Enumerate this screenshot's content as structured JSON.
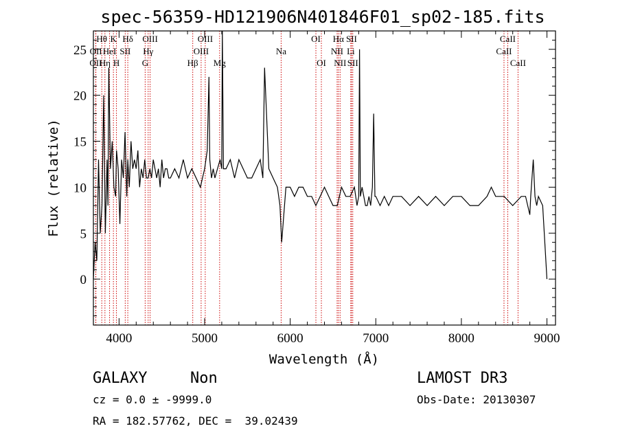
{
  "chart_data": {
    "type": "line",
    "title": "spec-56359-HD121906N401846F01_sp02-185.fits",
    "xlabel": "Wavelength (Å)",
    "ylabel": "Flux (relative)",
    "xlim": [
      3700,
      9100
    ],
    "ylim": [
      -5,
      27
    ],
    "xticks": [
      4000,
      5000,
      6000,
      7000,
      8000,
      9000
    ],
    "yticks": [
      0,
      5,
      10,
      15,
      20,
      25
    ],
    "grid": false,
    "line_color": "#000000",
    "marker_color": "#cc0000",
    "series": [
      {
        "x": [
          3700,
          3720,
          3740,
          3760,
          3780,
          3800,
          3820,
          3840,
          3860,
          3870,
          3880,
          3900,
          3920,
          3940,
          3960,
          3970,
          3990,
          4010,
          4030,
          4050,
          4070,
          4090,
          4102,
          4120,
          4140,
          4160,
          4180,
          4200,
          4220,
          4240,
          4260,
          4280,
          4300,
          4320,
          4340,
          4360,
          4380,
          4400,
          4420,
          4440,
          4460,
          4480,
          4500,
          4520,
          4540,
          4560,
          4580,
          4600,
          4650,
          4700,
          4750,
          4800,
          4850,
          4900,
          4950,
          5000,
          5030,
          5050,
          5060,
          5080,
          5100,
          5120,
          5150,
          5180,
          5200,
          5207,
          5220,
          5250,
          5300,
          5350,
          5400,
          5450,
          5500,
          5550,
          5600,
          5650,
          5680,
          5700,
          5750,
          5800,
          5850,
          5880,
          5900,
          5950,
          6000,
          6050,
          6100,
          6150,
          6200,
          6250,
          6300,
          6350,
          6400,
          6450,
          6500,
          6550,
          6600,
          6650,
          6700,
          6750,
          6780,
          6800,
          6810,
          6820,
          6840,
          6860,
          6880,
          6900,
          6920,
          6940,
          6960,
          6975,
          6990,
          7000,
          7050,
          7100,
          7150,
          7200,
          7300,
          7400,
          7500,
          7600,
          7700,
          7800,
          7900,
          8000,
          8100,
          8200,
          8300,
          8350,
          8400,
          8500,
          8600,
          8700,
          8750,
          8800,
          8810,
          8840,
          8860,
          8880,
          8900,
          8950,
          9000
        ],
        "values": [
          0,
          4,
          2,
          13,
          5,
          8,
          20,
          5,
          13,
          8,
          23,
          12,
          15,
          10,
          9,
          14,
          12,
          6,
          13,
          11,
          16,
          9,
          13,
          10,
          15,
          12,
          13,
          12,
          14,
          10,
          12,
          11,
          13,
          11,
          11,
          12,
          11,
          13,
          12,
          11,
          12,
          10,
          13,
          11,
          12,
          12,
          11,
          11,
          12,
          11,
          13,
          11,
          12,
          11,
          10,
          12,
          14,
          22,
          13,
          11,
          12,
          11,
          12,
          13,
          12,
          27,
          12,
          12,
          13,
          11,
          13,
          12,
          11,
          11,
          12,
          13,
          11,
          23,
          12,
          11,
          10,
          8,
          4,
          10,
          10,
          9,
          10,
          10,
          9,
          9,
          8,
          9,
          10,
          9,
          8,
          8,
          10,
          9,
          9,
          10,
          8,
          9,
          25,
          9,
          10,
          9,
          8,
          8,
          9,
          8,
          10,
          18,
          9,
          9,
          8,
          9,
          8,
          9,
          9,
          8,
          9,
          8,
          9,
          8,
          9,
          9,
          8,
          8,
          9,
          10,
          9,
          9,
          8,
          9,
          9,
          7,
          9,
          13,
          9,
          8,
          9,
          8,
          0
        ]
      }
    ],
    "lines": [
      {
        "label": "OII",
        "wave": 3727,
        "row": 2
      },
      {
        "label": "OII",
        "wave": 3729,
        "row": 1
      },
      {
        "label": "Hθ",
        "wave": 3798,
        "row": 0
      },
      {
        "label": "Hη",
        "wave": 3835,
        "row": 2
      },
      {
        "label": "HeI",
        "wave": 3889,
        "row": 1
      },
      {
        "label": "K",
        "wave": 3934,
        "row": 0
      },
      {
        "label": "H",
        "wave": 3969,
        "row": 2
      },
      {
        "label": "Hδ",
        "wave": 4102,
        "row": 0
      },
      {
        "label": "SII",
        "wave": 4072,
        "row": 1
      },
      {
        "label": "G",
        "wave": 4305,
        "row": 2
      },
      {
        "label": "Hγ",
        "wave": 4340,
        "row": 1
      },
      {
        "label": "OIII",
        "wave": 4363,
        "row": 0
      },
      {
        "label": "Hβ",
        "wave": 4861,
        "row": 2
      },
      {
        "label": "OIII",
        "wave": 4959,
        "row": 1
      },
      {
        "label": "OIII",
        "wave": 5007,
        "row": 0
      },
      {
        "label": "Mg",
        "wave": 5175,
        "row": 2
      },
      {
        "label": "Na",
        "wave": 5894,
        "row": 1
      },
      {
        "label": "OI",
        "wave": 6300,
        "row": 0
      },
      {
        "label": "OI",
        "wave": 6364,
        "row": 2
      },
      {
        "label": "NII",
        "wave": 6548,
        "row": 1
      },
      {
        "label": "Hα",
        "wave": 6563,
        "row": 0
      },
      {
        "label": "NII",
        "wave": 6583,
        "row": 2
      },
      {
        "label": "Li",
        "wave": 6708,
        "row": 1
      },
      {
        "label": "SII",
        "wave": 6716,
        "row": 0
      },
      {
        "label": "SII",
        "wave": 6731,
        "row": 2
      },
      {
        "label": "CaII",
        "wave": 8498,
        "row": 1
      },
      {
        "label": "CaII",
        "wave": 8542,
        "row": 0
      },
      {
        "label": "CaII",
        "wave": 8662,
        "row": 2
      }
    ]
  },
  "info": {
    "class_label": "GALAXY",
    "subclass_label": "Non",
    "cz_line": "cz = 0.0 ± -9999.0",
    "radec_line": "RA = 182.57762, DEC =  39.02439",
    "survey_label": "LAMOST DR3",
    "obsdate_line": "Obs-Date: 20130307"
  }
}
